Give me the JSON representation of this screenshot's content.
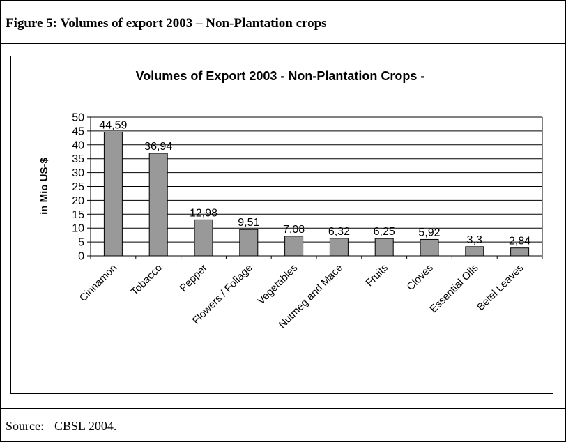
{
  "figure_title": "Figure 5:   Volumes of export 2003 – Non-Plantation crops",
  "source": {
    "label": "Source:",
    "text": "CBSL 2004."
  },
  "chart_data": {
    "type": "bar",
    "title": "Volumes of Export 2003 - Non-Plantation Crops -",
    "xlabel": "",
    "ylabel": "in Mio US-$",
    "ylim": [
      0,
      50
    ],
    "yticks": [
      0,
      5,
      10,
      15,
      20,
      25,
      30,
      35,
      40,
      45,
      50
    ],
    "grid": true,
    "legend": "none",
    "categories": [
      "Cinnamon",
      "Tobacco",
      "Pepper",
      "Flowers / Foliage",
      "Vegetables",
      "Nutmeg and Mace",
      "Fruits",
      "Cloves",
      "Essential Oils",
      "Betel Leaves"
    ],
    "values": [
      44.59,
      36.94,
      12.98,
      9.51,
      7.08,
      6.32,
      6.25,
      5.92,
      3.3,
      2.84
    ],
    "value_labels": [
      "44,59",
      "36,94",
      "12,98",
      "9,51",
      "7,08",
      "6,32",
      "6,25",
      "5,92",
      "3,3",
      "2,84"
    ],
    "bar_color": "#999999"
  }
}
